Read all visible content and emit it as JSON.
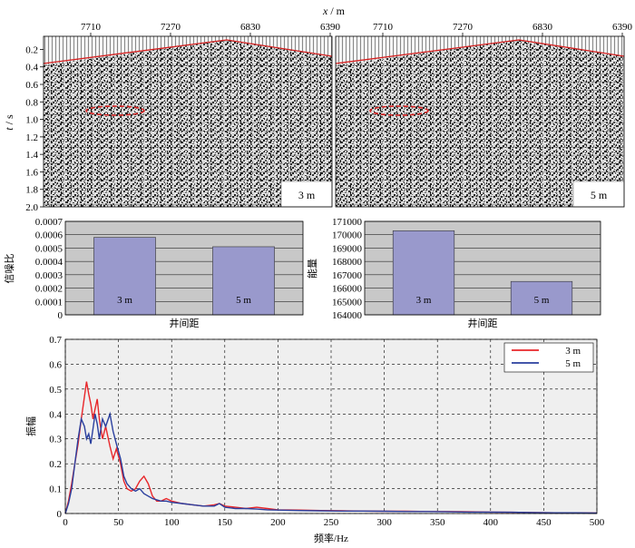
{
  "chart_data": [
    {
      "type": "seismic-section",
      "panel_label": "3 m",
      "x_axis_label_var": "x",
      "x_axis_label_unit": "m",
      "x_ticks": [
        "7710",
        "7270",
        "6830",
        "6390"
      ],
      "y_axis_label_var": "t",
      "y_axis_label_unit": "s",
      "y_ticks": [
        "0.2",
        "0.4",
        "0.6",
        "0.8",
        "1.0",
        "1.2",
        "1.4",
        "1.6",
        "1.8",
        "2.0"
      ]
    },
    {
      "type": "seismic-section",
      "panel_label": "5 m",
      "x_ticks": [
        "7710",
        "7270",
        "6830",
        "6390"
      ]
    },
    {
      "type": "bar",
      "categories": [
        "3 m",
        "5 m"
      ],
      "values": [
        0.00058,
        0.00051
      ],
      "xlabel": "井间距",
      "ylabel": "信噪比",
      "ylim": [
        0,
        0.0007
      ],
      "y_ticks": [
        "0",
        "0.0001",
        "0.0002",
        "0.0003",
        "0.0004",
        "0.0005",
        "0.0006",
        "0.0007"
      ],
      "grid": true,
      "bar_color": "#9999cc"
    },
    {
      "type": "bar",
      "categories": [
        "3 m",
        "5 m"
      ],
      "values": [
        170300,
        166500
      ],
      "xlabel": "井间距",
      "ylabel": "能量",
      "ylim": [
        164000,
        171000
      ],
      "y_ticks": [
        "164000",
        "165000",
        "166000",
        "167000",
        "168000",
        "169000",
        "170000",
        "171000"
      ],
      "grid": true,
      "bar_color": "#9999cc"
    },
    {
      "type": "line",
      "xlabel": "频率/Hz",
      "ylabel": "振幅",
      "xlim": [
        0,
        500
      ],
      "ylim": [
        0,
        0.7
      ],
      "x_ticks": [
        "0",
        "50",
        "100",
        "150",
        "200",
        "250",
        "300",
        "350",
        "400",
        "450",
        "500"
      ],
      "y_ticks": [
        "0",
        "0.1",
        "0.2",
        "0.3",
        "0.4",
        "0.5",
        "0.6",
        "0.7"
      ],
      "grid": "dashed",
      "legend": "top-right",
      "series": [
        {
          "name": "3 m",
          "color": "#e8262a",
          "x": [
            0,
            3,
            6,
            9,
            12,
            15,
            18,
            20,
            22,
            24,
            26,
            28,
            30,
            32,
            35,
            38,
            42,
            45,
            48,
            52,
            55,
            58,
            62,
            66,
            70,
            74,
            78,
            82,
            86,
            90,
            95,
            100,
            110,
            120,
            130,
            140,
            145,
            150,
            160,
            170,
            180,
            190,
            200,
            220,
            240,
            260,
            280,
            300,
            320,
            340,
            360,
            380,
            400,
            420,
            440,
            460,
            480,
            500
          ],
          "y": [
            0,
            0.05,
            0.12,
            0.2,
            0.28,
            0.38,
            0.47,
            0.53,
            0.48,
            0.44,
            0.38,
            0.42,
            0.46,
            0.38,
            0.3,
            0.35,
            0.27,
            0.22,
            0.26,
            0.2,
            0.13,
            0.1,
            0.09,
            0.1,
            0.13,
            0.15,
            0.12,
            0.07,
            0.05,
            0.05,
            0.06,
            0.05,
            0.04,
            0.035,
            0.03,
            0.035,
            0.04,
            0.03,
            0.025,
            0.02,
            0.025,
            0.02,
            0.015,
            0.014,
            0.012,
            0.011,
            0.01,
            0.009,
            0.009,
            0.008,
            0.008,
            0.007,
            0.006,
            0.005,
            0.004,
            0.003,
            0.003,
            0.002
          ]
        },
        {
          "name": "5 m",
          "color": "#2a3f9e",
          "x": [
            0,
            3,
            6,
            9,
            12,
            15,
            18,
            20,
            22,
            24,
            26,
            28,
            30,
            32,
            35,
            38,
            42,
            45,
            48,
            52,
            55,
            58,
            62,
            66,
            70,
            74,
            78,
            82,
            86,
            90,
            95,
            100,
            110,
            120,
            130,
            140,
            145,
            150,
            160,
            170,
            180,
            190,
            200,
            220,
            240,
            260,
            280,
            300,
            320,
            340,
            360,
            380,
            400,
            420,
            440,
            460,
            480,
            500
          ],
          "y": [
            0,
            0.04,
            0.1,
            0.2,
            0.3,
            0.38,
            0.35,
            0.3,
            0.32,
            0.28,
            0.34,
            0.4,
            0.36,
            0.3,
            0.38,
            0.35,
            0.4,
            0.33,
            0.28,
            0.22,
            0.15,
            0.12,
            0.1,
            0.09,
            0.1,
            0.08,
            0.07,
            0.06,
            0.055,
            0.05,
            0.05,
            0.045,
            0.04,
            0.035,
            0.03,
            0.03,
            0.04,
            0.025,
            0.02,
            0.02,
            0.018,
            0.015,
            0.014,
            0.012,
            0.011,
            0.01,
            0.01,
            0.009,
            0.008,
            0.008,
            0.007,
            0.006,
            0.006,
            0.005,
            0.004,
            0.003,
            0.003,
            0.002
          ]
        }
      ]
    }
  ]
}
